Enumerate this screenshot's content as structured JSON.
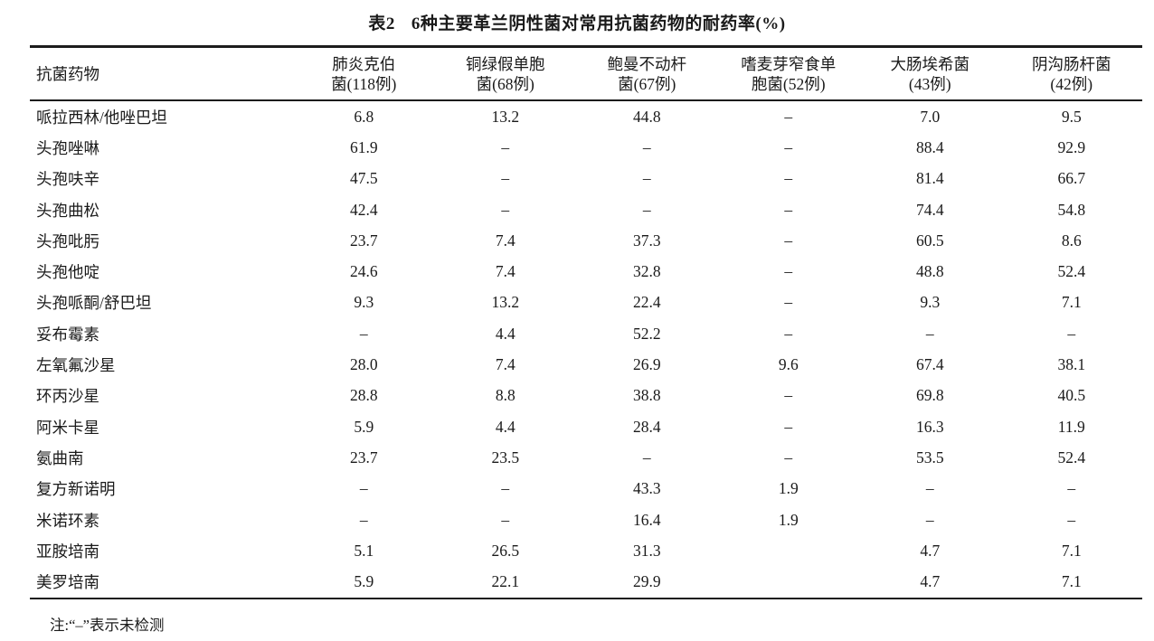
{
  "title": {
    "label": "表2",
    "text": "6种主要革兰阴性菌对常用抗菌药物的耐药率(%)"
  },
  "table": {
    "drug_header": "抗菌药物",
    "columns": [
      {
        "line1": "肺炎克伯",
        "line2": "菌(118例)"
      },
      {
        "line1": "铜绿假单胞",
        "line2": "菌(68例)"
      },
      {
        "line1": "鲍曼不动杆",
        "line2": "菌(67例)"
      },
      {
        "line1": "嗜麦芽窄食单",
        "line2": "胞菌(52例)"
      },
      {
        "line1": "大肠埃希菌",
        "line2": "(43例)"
      },
      {
        "line1": "阴沟肠杆菌",
        "line2": "(42例)"
      }
    ],
    "rows": [
      {
        "drug": "哌拉西林/他唑巴坦",
        "values": [
          "6.8",
          "13.2",
          "44.8",
          "–",
          "7.0",
          "9.5"
        ]
      },
      {
        "drug": "头孢唑啉",
        "values": [
          "61.9",
          "–",
          "–",
          "–",
          "88.4",
          "92.9"
        ]
      },
      {
        "drug": "头孢呋辛",
        "values": [
          "47.5",
          "–",
          "–",
          "–",
          "81.4",
          "66.7"
        ]
      },
      {
        "drug": "头孢曲松",
        "values": [
          "42.4",
          "–",
          "–",
          "–",
          "74.4",
          "54.8"
        ]
      },
      {
        "drug": "头孢吡肟",
        "values": [
          "23.7",
          "7.4",
          "37.3",
          "–",
          "60.5",
          "8.6"
        ]
      },
      {
        "drug": "头孢他啶",
        "values": [
          "24.6",
          "7.4",
          "32.8",
          "–",
          "48.8",
          "52.4"
        ]
      },
      {
        "drug": "头孢哌酮/舒巴坦",
        "values": [
          "9.3",
          "13.2",
          "22.4",
          "–",
          "9.3",
          "7.1"
        ]
      },
      {
        "drug": "妥布霉素",
        "values": [
          "–",
          "4.4",
          "52.2",
          "–",
          "–",
          "–"
        ]
      },
      {
        "drug": "左氧氟沙星",
        "values": [
          "28.0",
          "7.4",
          "26.9",
          "9.6",
          "67.4",
          "38.1"
        ]
      },
      {
        "drug": "环丙沙星",
        "values": [
          "28.8",
          "8.8",
          "38.8",
          "–",
          "69.8",
          "40.5"
        ]
      },
      {
        "drug": "阿米卡星",
        "values": [
          "5.9",
          "4.4",
          "28.4",
          "–",
          "16.3",
          "11.9"
        ]
      },
      {
        "drug": "氨曲南",
        "values": [
          "23.7",
          "23.5",
          "–",
          "–",
          "53.5",
          "52.4"
        ]
      },
      {
        "drug": "复方新诺明",
        "values": [
          "–",
          "–",
          "43.3",
          "1.9",
          "–",
          "–"
        ]
      },
      {
        "drug": "米诺环素",
        "values": [
          "–",
          "–",
          "16.4",
          "1.9",
          "–",
          "–"
        ]
      },
      {
        "drug": "亚胺培南",
        "values": [
          "5.1",
          "26.5",
          "31.3",
          "",
          "4.7",
          "7.1"
        ]
      },
      {
        "drug": "美罗培南",
        "values": [
          "5.9",
          "22.1",
          "29.9",
          "",
          "4.7",
          "7.1"
        ]
      }
    ]
  },
  "footnote": "注:“–”表示未检测"
}
